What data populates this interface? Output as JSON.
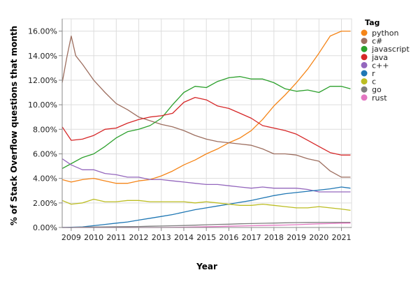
{
  "chart_data": {
    "type": "line",
    "title": "",
    "xlabel": "Year",
    "ylabel": "% of Stack Overflow questions that month",
    "xlim": [
      2008.6,
      2021.45
    ],
    "ylim": [
      0,
      17
    ],
    "x_ticks": [
      {
        "value": 2009,
        "label": "2009"
      },
      {
        "value": 2010,
        "label": "2010"
      },
      {
        "value": 2011,
        "label": "2011"
      },
      {
        "value": 2012,
        "label": "2012"
      },
      {
        "value": 2013,
        "label": "2013"
      },
      {
        "value": 2014,
        "label": "2014"
      },
      {
        "value": 2015,
        "label": "2015"
      },
      {
        "value": 2016,
        "label": "2016"
      },
      {
        "value": 2017,
        "label": "2017"
      },
      {
        "value": 2018,
        "label": "2018"
      },
      {
        "value": 2019,
        "label": "2019"
      },
      {
        "value": 2020,
        "label": "2020"
      },
      {
        "value": 2021,
        "label": "2021"
      }
    ],
    "y_ticks": [
      {
        "value": 0,
        "label": "0.00%"
      },
      {
        "value": 2,
        "label": "2.00%"
      },
      {
        "value": 4,
        "label": "4.00%"
      },
      {
        "value": 6,
        "label": "6.00%"
      },
      {
        "value": 8,
        "label": "8.00%"
      },
      {
        "value": 10,
        "label": "10.00%"
      },
      {
        "value": 12,
        "label": "12.00%"
      },
      {
        "value": 14,
        "label": "14.00%"
      },
      {
        "value": 16,
        "label": "16.00%"
      }
    ],
    "grid": true,
    "legend": {
      "title": "Tag",
      "position": "right"
    },
    "series": [
      {
        "name": "python",
        "color": "#f58518",
        "x": [
          2008.6,
          2009.0,
          2009.5,
          2010.0,
          2010.5,
          2011.0,
          2011.5,
          2012.0,
          2012.5,
          2013.0,
          2013.5,
          2014.0,
          2014.5,
          2015.0,
          2015.5,
          2016.0,
          2016.5,
          2017.0,
          2017.5,
          2018.0,
          2018.5,
          2019.0,
          2019.5,
          2020.0,
          2020.5,
          2021.0,
          2021.4
        ],
        "y": [
          3.9,
          3.7,
          3.9,
          4.0,
          3.8,
          3.6,
          3.6,
          3.8,
          3.9,
          4.2,
          4.6,
          5.1,
          5.5,
          6.0,
          6.4,
          6.9,
          7.3,
          7.9,
          8.8,
          9.9,
          10.8,
          11.8,
          12.9,
          14.2,
          15.6,
          16.0,
          16.0
        ]
      },
      {
        "name": "c#",
        "color": "#9d6e5f",
        "x": [
          2008.6,
          2008.8,
          2009.0,
          2009.2,
          2009.5,
          2010.0,
          2010.5,
          2011.0,
          2011.5,
          2012.0,
          2012.5,
          2013.0,
          2013.5,
          2014.0,
          2014.5,
          2015.0,
          2015.5,
          2016.0,
          2016.5,
          2017.0,
          2017.5,
          2018.0,
          2018.5,
          2019.0,
          2019.5,
          2020.0,
          2020.5,
          2021.0,
          2021.4
        ],
        "y": [
          11.8,
          13.8,
          15.6,
          14.0,
          13.3,
          12.0,
          11.0,
          10.1,
          9.6,
          9.0,
          8.7,
          8.4,
          8.2,
          7.9,
          7.5,
          7.2,
          7.0,
          6.9,
          6.8,
          6.7,
          6.4,
          6.0,
          6.0,
          5.9,
          5.6,
          5.4,
          4.6,
          4.1,
          4.1
        ]
      },
      {
        "name": "javascript",
        "color": "#2ca02c",
        "x": [
          2008.6,
          2009.0,
          2009.5,
          2010.0,
          2010.5,
          2011.0,
          2011.5,
          2012.0,
          2012.5,
          2013.0,
          2013.5,
          2014.0,
          2014.5,
          2015.0,
          2015.5,
          2016.0,
          2016.5,
          2017.0,
          2017.5,
          2018.0,
          2018.5,
          2019.0,
          2019.5,
          2020.0,
          2020.5,
          2021.0,
          2021.4
        ],
        "y": [
          4.8,
          5.2,
          5.7,
          6.0,
          6.6,
          7.3,
          7.8,
          8.0,
          8.3,
          8.9,
          10.0,
          11.0,
          11.5,
          11.4,
          11.9,
          12.2,
          12.3,
          12.1,
          12.1,
          11.8,
          11.3,
          11.1,
          11.2,
          11.0,
          11.5,
          11.5,
          11.3
        ]
      },
      {
        "name": "java",
        "color": "#d62728",
        "x": [
          2008.6,
          2009.0,
          2009.5,
          2010.0,
          2010.5,
          2011.0,
          2011.5,
          2012.0,
          2012.5,
          2013.0,
          2013.5,
          2014.0,
          2014.5,
          2015.0,
          2015.5,
          2016.0,
          2016.5,
          2017.0,
          2017.5,
          2018.0,
          2018.5,
          2019.0,
          2019.5,
          2020.0,
          2020.5,
          2021.0,
          2021.4
        ],
        "y": [
          8.2,
          7.1,
          7.2,
          7.5,
          8.0,
          8.1,
          8.5,
          8.8,
          9.0,
          9.1,
          9.3,
          10.2,
          10.6,
          10.4,
          9.9,
          9.7,
          9.3,
          8.9,
          8.3,
          8.1,
          7.9,
          7.6,
          7.1,
          6.6,
          6.1,
          5.9,
          5.9
        ]
      },
      {
        "name": "c++",
        "color": "#9467bd",
        "x": [
          2008.6,
          2009.0,
          2009.5,
          2010.0,
          2010.5,
          2011.0,
          2011.5,
          2012.0,
          2012.5,
          2013.0,
          2013.5,
          2014.0,
          2014.5,
          2015.0,
          2015.5,
          2016.0,
          2016.5,
          2017.0,
          2017.5,
          2018.0,
          2018.5,
          2019.0,
          2019.5,
          2020.0,
          2020.5,
          2021.0,
          2021.4
        ],
        "y": [
          5.6,
          5.1,
          4.7,
          4.7,
          4.4,
          4.3,
          4.1,
          4.1,
          3.9,
          3.9,
          3.8,
          3.7,
          3.6,
          3.5,
          3.5,
          3.4,
          3.3,
          3.2,
          3.3,
          3.2,
          3.2,
          3.2,
          3.1,
          2.9,
          2.9,
          2.9,
          2.9
        ]
      },
      {
        "name": "r",
        "color": "#1f77b4",
        "x": [
          2008.6,
          2009.0,
          2009.5,
          2010.0,
          2010.5,
          2011.0,
          2011.5,
          2012.0,
          2012.5,
          2013.0,
          2013.5,
          2014.0,
          2014.5,
          2015.0,
          2015.5,
          2016.0,
          2016.5,
          2017.0,
          2017.5,
          2018.0,
          2018.5,
          2019.0,
          2019.5,
          2020.0,
          2020.5,
          2021.0,
          2021.4
        ],
        "y": [
          0.0,
          0.02,
          0.05,
          0.15,
          0.25,
          0.35,
          0.45,
          0.6,
          0.75,
          0.9,
          1.05,
          1.25,
          1.45,
          1.6,
          1.75,
          1.9,
          2.05,
          2.2,
          2.4,
          2.6,
          2.75,
          2.85,
          2.95,
          3.05,
          3.15,
          3.3,
          3.2
        ]
      },
      {
        "name": "c",
        "color": "#bcbd22",
        "x": [
          2008.6,
          2009.0,
          2009.5,
          2010.0,
          2010.5,
          2011.0,
          2011.5,
          2012.0,
          2012.5,
          2013.0,
          2013.5,
          2014.0,
          2014.5,
          2015.0,
          2015.5,
          2016.0,
          2016.5,
          2017.0,
          2017.5,
          2018.0,
          2018.5,
          2019.0,
          2019.5,
          2020.0,
          2020.5,
          2021.0,
          2021.4
        ],
        "y": [
          2.2,
          1.9,
          2.0,
          2.3,
          2.1,
          2.1,
          2.2,
          2.2,
          2.1,
          2.1,
          2.1,
          2.1,
          2.0,
          2.1,
          2.0,
          1.9,
          1.8,
          1.8,
          1.9,
          1.8,
          1.7,
          1.6,
          1.6,
          1.7,
          1.6,
          1.5,
          1.4
        ]
      },
      {
        "name": "go",
        "color": "#7f7f7f",
        "x": [
          2008.6,
          2009.0,
          2009.5,
          2010.0,
          2010.5,
          2011.0,
          2011.5,
          2012.0,
          2012.5,
          2013.0,
          2013.5,
          2014.0,
          2014.5,
          2015.0,
          2015.5,
          2016.0,
          2016.5,
          2017.0,
          2017.5,
          2018.0,
          2018.5,
          2019.0,
          2019.5,
          2020.0,
          2020.5,
          2021.0,
          2021.4
        ],
        "y": [
          0.0,
          0.0,
          0.03,
          0.04,
          0.05,
          0.06,
          0.07,
          0.08,
          0.1,
          0.12,
          0.14,
          0.16,
          0.19,
          0.22,
          0.25,
          0.27,
          0.3,
          0.32,
          0.34,
          0.36,
          0.38,
          0.4,
          0.41,
          0.42,
          0.42,
          0.42,
          0.42
        ]
      },
      {
        "name": "rust",
        "color": "#e377c2",
        "x": [
          2008.6,
          2009.0,
          2009.5,
          2010.0,
          2010.5,
          2011.0,
          2011.5,
          2012.0,
          2012.5,
          2013.0,
          2013.5,
          2014.0,
          2014.5,
          2015.0,
          2015.5,
          2016.0,
          2016.5,
          2017.0,
          2017.5,
          2018.0,
          2018.5,
          2019.0,
          2019.5,
          2020.0,
          2020.5,
          2021.0,
          2021.4
        ],
        "y": [
          0.0,
          0.0,
          0.0,
          0.0,
          0.0,
          0.0,
          0.0,
          0.0,
          0.0,
          0.0,
          0.01,
          0.02,
          0.04,
          0.06,
          0.08,
          0.1,
          0.12,
          0.14,
          0.16,
          0.18,
          0.2,
          0.23,
          0.26,
          0.3,
          0.32,
          0.35,
          0.36
        ]
      }
    ]
  }
}
